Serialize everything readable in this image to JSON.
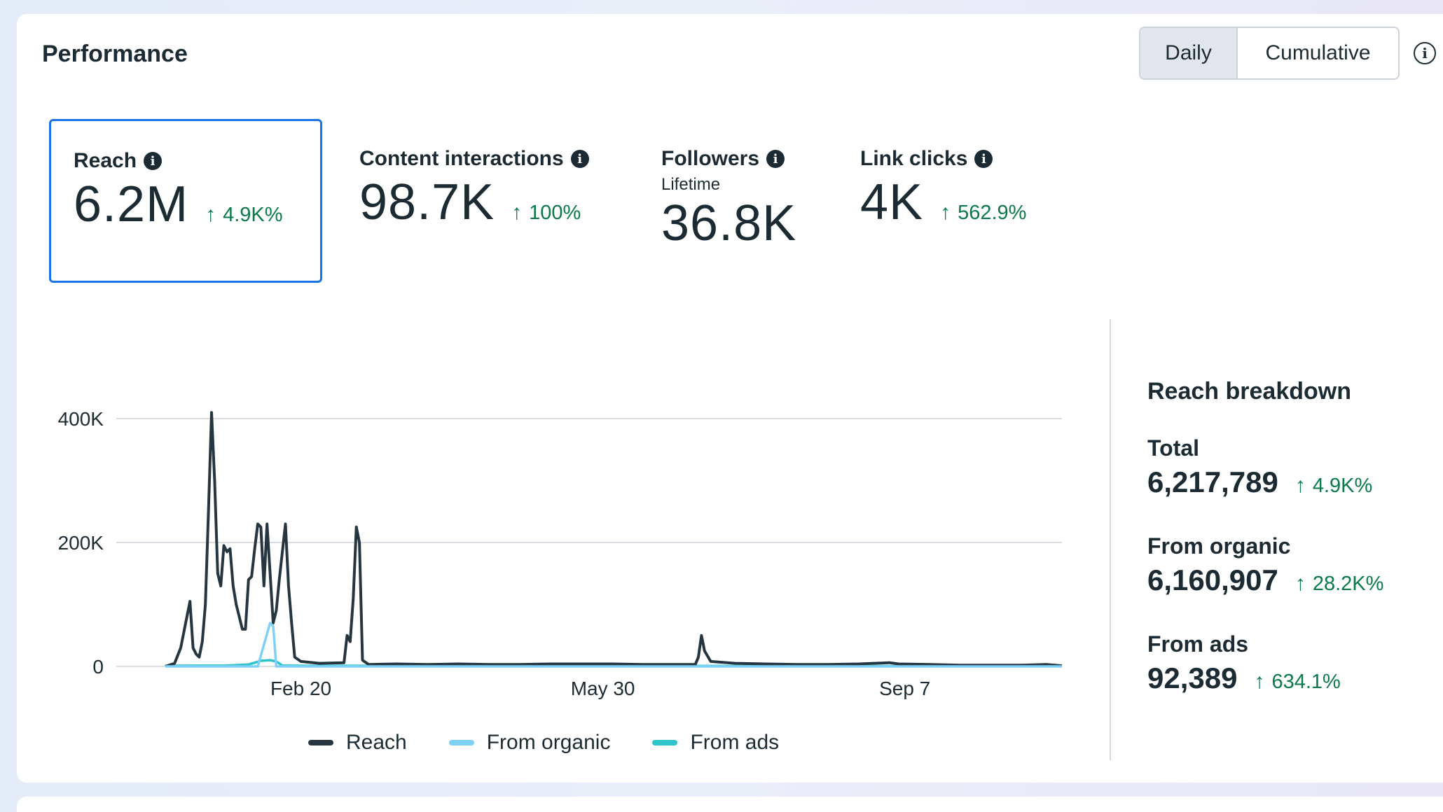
{
  "title": "Performance",
  "toggle": {
    "daily": "Daily",
    "cumulative": "Cumulative",
    "selected": "Daily"
  },
  "metrics": [
    {
      "label": "Reach",
      "value": "6.2M",
      "change": "4.9K%",
      "selected": true
    },
    {
      "label": "Content interactions",
      "value": "98.7K",
      "change": "100%"
    },
    {
      "label": "Followers",
      "sublabel": "Lifetime",
      "value": "36.8K"
    },
    {
      "label": "Link clicks",
      "value": "4K",
      "change": "562.9%"
    }
  ],
  "breakdown": {
    "title": "Reach breakdown",
    "items": [
      {
        "label": "Total",
        "value": "6,217,789",
        "change": "4.9K%"
      },
      {
        "label": "From organic",
        "value": "6,160,907",
        "change": "28.2K%"
      },
      {
        "label": "From ads",
        "value": "92,389",
        "change": "634.1%"
      }
    ]
  },
  "colors": {
    "reach": "#263640",
    "organic": "#7fd0f5",
    "ads": "#2ec4c9",
    "positive": "#0a7a4a",
    "selected_border": "#1a73e8"
  },
  "chart_data": {
    "type": "line",
    "y_ticks": [
      "400K",
      "200K",
      "0"
    ],
    "ylim": [
      0,
      400000
    ],
    "x_tick_labels": [
      "Feb 20",
      "May 30",
      "Sep 7"
    ],
    "x_tick_positions": [
      44,
      142,
      240
    ],
    "x_range": [
      0,
      291
    ],
    "series": [
      {
        "name": "Reach",
        "color": "#263640",
        "points": [
          [
            0,
            0
          ],
          [
            3,
            5000
          ],
          [
            5,
            30000
          ],
          [
            7,
            80000
          ],
          [
            8,
            105000
          ],
          [
            9,
            30000
          ],
          [
            10,
            20000
          ],
          [
            11,
            15000
          ],
          [
            12,
            40000
          ],
          [
            13,
            100000
          ],
          [
            14,
            250000
          ],
          [
            15,
            410000
          ],
          [
            16,
            300000
          ],
          [
            17,
            150000
          ],
          [
            18,
            130000
          ],
          [
            19,
            195000
          ],
          [
            20,
            185000
          ],
          [
            21,
            190000
          ],
          [
            22,
            130000
          ],
          [
            23,
            100000
          ],
          [
            24,
            80000
          ],
          [
            25,
            60000
          ],
          [
            26,
            60000
          ],
          [
            27,
            140000
          ],
          [
            28,
            145000
          ],
          [
            29,
            190000
          ],
          [
            30,
            230000
          ],
          [
            31,
            225000
          ],
          [
            32,
            130000
          ],
          [
            33,
            230000
          ],
          [
            34,
            150000
          ],
          [
            35,
            70000
          ],
          [
            36,
            90000
          ],
          [
            37,
            140000
          ],
          [
            38,
            185000
          ],
          [
            39,
            230000
          ],
          [
            40,
            130000
          ],
          [
            41,
            70000
          ],
          [
            42,
            15000
          ],
          [
            44,
            8000
          ],
          [
            50,
            5000
          ],
          [
            58,
            6000
          ],
          [
            59,
            50000
          ],
          [
            60,
            40000
          ],
          [
            61,
            110000
          ],
          [
            62,
            225000
          ],
          [
            63,
            200000
          ],
          [
            64,
            10000
          ],
          [
            66,
            3000
          ],
          [
            75,
            4000
          ],
          [
            85,
            3000
          ],
          [
            95,
            4000
          ],
          [
            105,
            3000
          ],
          [
            115,
            3000
          ],
          [
            125,
            4000
          ],
          [
            135,
            4000
          ],
          [
            145,
            4000
          ],
          [
            155,
            3000
          ],
          [
            165,
            3000
          ],
          [
            172,
            3000
          ],
          [
            173,
            15000
          ],
          [
            174,
            50000
          ],
          [
            175,
            25000
          ],
          [
            177,
            8000
          ],
          [
            185,
            5000
          ],
          [
            195,
            4000
          ],
          [
            205,
            3000
          ],
          [
            215,
            3000
          ],
          [
            225,
            4000
          ],
          [
            235,
            6000
          ],
          [
            238,
            4000
          ],
          [
            248,
            3000
          ],
          [
            258,
            2000
          ],
          [
            268,
            2000
          ],
          [
            278,
            2000
          ],
          [
            286,
            3000
          ],
          [
            291,
            1000
          ]
        ]
      },
      {
        "name": "From organic",
        "color": "#7fd0f5",
        "points": [
          [
            0,
            0
          ],
          [
            30,
            0
          ],
          [
            34,
            70000
          ],
          [
            35,
            65000
          ],
          [
            36,
            0
          ],
          [
            291,
            0
          ]
        ]
      },
      {
        "name": "From ads",
        "color": "#2ec4c9",
        "points": [
          [
            0,
            1000
          ],
          [
            20,
            1500
          ],
          [
            27,
            3000
          ],
          [
            31,
            9000
          ],
          [
            34,
            10000
          ],
          [
            36,
            8000
          ],
          [
            38,
            1500
          ],
          [
            45,
            1000
          ],
          [
            291,
            500
          ]
        ]
      }
    ]
  }
}
